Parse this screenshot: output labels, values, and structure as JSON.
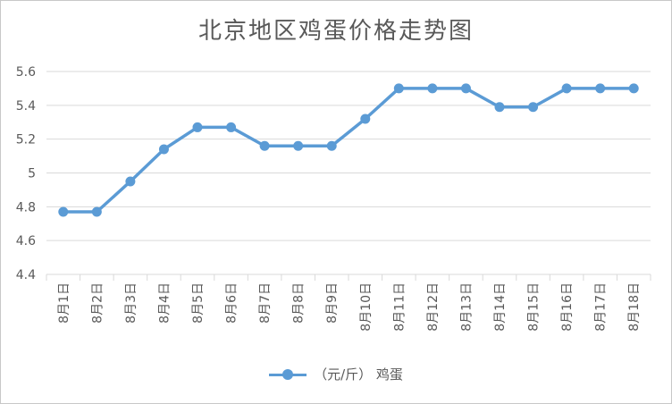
{
  "chart_data": {
    "type": "line",
    "title": "北京地区鸡蛋价格走势图",
    "categories": [
      "8月1日",
      "8月2日",
      "8月3日",
      "8月4日",
      "8月5日",
      "8月6日",
      "8月7日",
      "8月8日",
      "8月9日",
      "8月10日",
      "8月11日",
      "8月12日",
      "8月13日",
      "8月14日",
      "8月15日",
      "8月16日",
      "8月17日",
      "8月18日"
    ],
    "series": [
      {
        "name": "（元/斤） 鸡蛋",
        "values": [
          4.77,
          4.77,
          4.95,
          5.14,
          5.27,
          5.27,
          5.16,
          5.16,
          5.16,
          5.32,
          5.5,
          5.5,
          5.5,
          5.39,
          5.39,
          5.5,
          5.5,
          5.5
        ]
      }
    ],
    "y_ticks": [
      "4.4",
      "4.6",
      "4.8",
      "5",
      "5.2",
      "5.4",
      "5.6"
    ],
    "ylim": [
      4.4,
      5.6
    ],
    "grid": true,
    "legend_position": "bottom",
    "series_color": "#5b9bd5",
    "grid_color": "#d9d9d9"
  }
}
